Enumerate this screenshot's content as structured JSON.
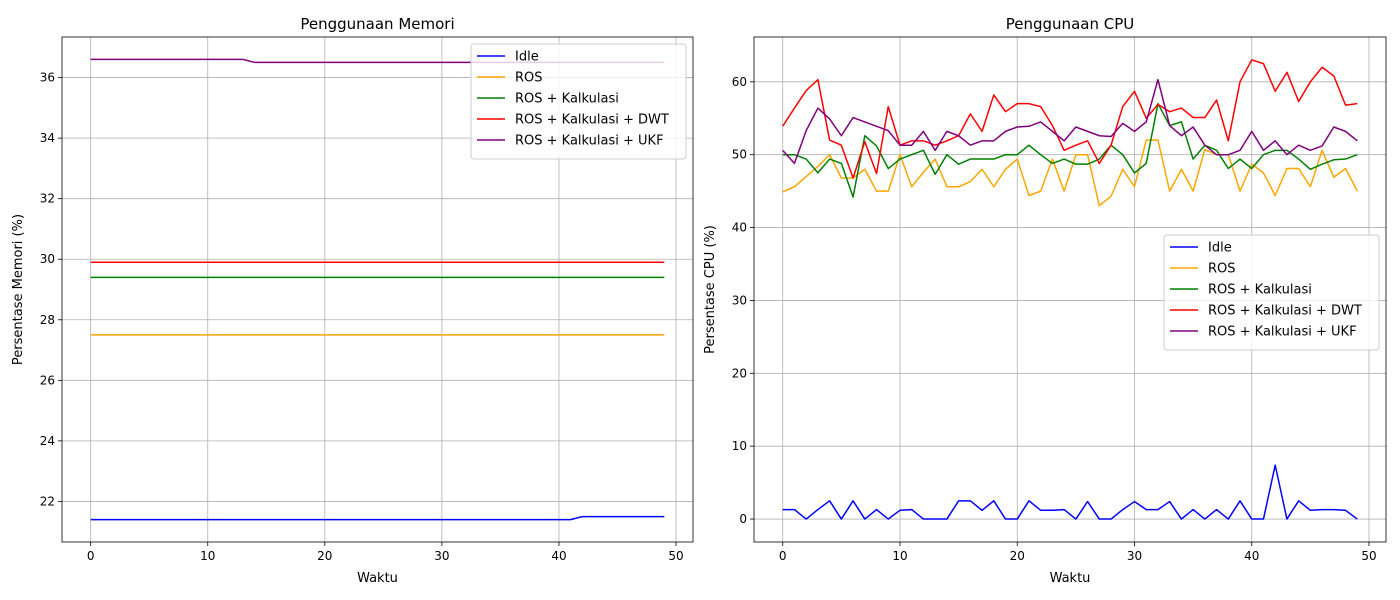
{
  "chart_data": [
    {
      "type": "line",
      "title": "Penggunaan Memori",
      "xlabel": "Waktu",
      "ylabel": "Persentase Memori (%)",
      "xlim": [
        -2.45,
        51.45
      ],
      "ylim": [
        20.66,
        37.34
      ],
      "xticks": [
        0,
        10,
        20,
        30,
        40,
        50
      ],
      "yticks": [
        22,
        24,
        26,
        28,
        30,
        32,
        34,
        36
      ],
      "grid": true,
      "legend_position": "top-right",
      "series": [
        {
          "name": "Idle",
          "color": "#0000ff",
          "values": [
            21.4,
            21.4,
            21.4,
            21.4,
            21.4,
            21.4,
            21.4,
            21.4,
            21.4,
            21.4,
            21.4,
            21.4,
            21.4,
            21.4,
            21.4,
            21.4,
            21.4,
            21.4,
            21.4,
            21.4,
            21.4,
            21.4,
            21.4,
            21.4,
            21.4,
            21.4,
            21.4,
            21.4,
            21.4,
            21.4,
            21.4,
            21.4,
            21.4,
            21.4,
            21.4,
            21.4,
            21.4,
            21.4,
            21.4,
            21.4,
            21.4,
            21.4,
            21.5,
            21.5,
            21.5,
            21.5,
            21.5,
            21.5,
            21.5,
            21.5
          ]
        },
        {
          "name": "ROS",
          "color": "#ffa500",
          "values": [
            27.5,
            27.5,
            27.5,
            27.5,
            27.5,
            27.5,
            27.5,
            27.5,
            27.5,
            27.5,
            27.5,
            27.5,
            27.5,
            27.5,
            27.5,
            27.5,
            27.5,
            27.5,
            27.5,
            27.5,
            27.5,
            27.5,
            27.5,
            27.5,
            27.5,
            27.5,
            27.5,
            27.5,
            27.5,
            27.5,
            27.5,
            27.5,
            27.5,
            27.5,
            27.5,
            27.5,
            27.5,
            27.5,
            27.5,
            27.5,
            27.5,
            27.5,
            27.5,
            27.5,
            27.5,
            27.5,
            27.5,
            27.5,
            27.5,
            27.5
          ]
        },
        {
          "name": "ROS + Kalkulasi",
          "color": "#008000",
          "values": [
            29.4,
            29.4,
            29.4,
            29.4,
            29.4,
            29.4,
            29.4,
            29.4,
            29.4,
            29.4,
            29.4,
            29.4,
            29.4,
            29.4,
            29.4,
            29.4,
            29.4,
            29.4,
            29.4,
            29.4,
            29.4,
            29.4,
            29.4,
            29.4,
            29.4,
            29.4,
            29.4,
            29.4,
            29.4,
            29.4,
            29.4,
            29.4,
            29.4,
            29.4,
            29.4,
            29.4,
            29.4,
            29.4,
            29.4,
            29.4,
            29.4,
            29.4,
            29.4,
            29.4,
            29.4,
            29.4,
            29.4,
            29.4,
            29.4,
            29.4
          ]
        },
        {
          "name": "ROS + Kalkulasi + DWT",
          "color": "#ff0000",
          "values": [
            29.9,
            29.9,
            29.9,
            29.9,
            29.9,
            29.9,
            29.9,
            29.9,
            29.9,
            29.9,
            29.9,
            29.9,
            29.9,
            29.9,
            29.9,
            29.9,
            29.9,
            29.9,
            29.9,
            29.9,
            29.9,
            29.9,
            29.9,
            29.9,
            29.9,
            29.9,
            29.9,
            29.9,
            29.9,
            29.9,
            29.9,
            29.9,
            29.9,
            29.9,
            29.9,
            29.9,
            29.9,
            29.9,
            29.9,
            29.9,
            29.9,
            29.9,
            29.9,
            29.9,
            29.9,
            29.9,
            29.9,
            29.9,
            29.9,
            29.9
          ]
        },
        {
          "name": "ROS + Kalkulasi + UKF",
          "color": "#800080",
          "values": [
            36.6,
            36.6,
            36.6,
            36.6,
            36.6,
            36.6,
            36.6,
            36.6,
            36.6,
            36.6,
            36.6,
            36.6,
            36.6,
            36.6,
            36.5,
            36.5,
            36.5,
            36.5,
            36.5,
            36.5,
            36.5,
            36.5,
            36.5,
            36.5,
            36.5,
            36.5,
            36.5,
            36.5,
            36.5,
            36.5,
            36.5,
            36.5,
            36.5,
            36.5,
            36.5,
            36.5,
            36.5,
            36.5,
            36.5,
            36.5,
            36.5,
            36.5,
            36.5,
            36.5,
            36.5,
            36.5,
            36.5,
            36.5,
            36.5,
            36.5
          ]
        }
      ]
    },
    {
      "type": "line",
      "title": "Penggunaan CPU",
      "xlabel": "Waktu",
      "ylabel": "Persentase CPU (%)",
      "xlim": [
        -2.45,
        51.45
      ],
      "ylim": [
        -3.15,
        66.15
      ],
      "xticks": [
        0,
        10,
        20,
        30,
        40,
        50
      ],
      "yticks": [
        0,
        10,
        20,
        30,
        40,
        50,
        60
      ],
      "grid": true,
      "legend_position": "center-right",
      "series": [
        {
          "name": "Idle",
          "color": "#0000ff",
          "values": [
            1.3,
            1.3,
            0,
            1.3,
            2.5,
            0,
            2.5,
            0,
            1.3,
            0,
            1.2,
            1.3,
            0,
            0,
            0,
            2.5,
            2.5,
            1.2,
            2.5,
            0,
            0,
            2.5,
            1.2,
            1.2,
            1.3,
            0,
            2.4,
            0,
            0,
            1.3,
            2.4,
            1.3,
            1.3,
            2.4,
            0,
            1.3,
            0,
            1.3,
            0,
            2.5,
            0,
            0,
            7.4,
            0,
            2.5,
            1.2,
            1.3,
            1.3,
            1.2,
            0
          ]
        },
        {
          "name": "ROS",
          "color": "#ffa500",
          "values": [
            44.9,
            45.6,
            47,
            48.4,
            50,
            46.8,
            46.8,
            48,
            45,
            45,
            50,
            45.6,
            47.6,
            49.4,
            45.6,
            45.6,
            46.3,
            48,
            45.6,
            48,
            49.4,
            44.4,
            45,
            49.4,
            45,
            50,
            50,
            43,
            44.3,
            48,
            45.6,
            52,
            52,
            45,
            48,
            45,
            50.7,
            50,
            50,
            45,
            48.7,
            47.5,
            44.4,
            48.1,
            48.1,
            45.6,
            50.6,
            46.9,
            48.1,
            45
          ]
        },
        {
          "name": "ROS + Kalkulasi",
          "color": "#008000",
          "values": [
            50,
            50,
            49.4,
            47.5,
            49.4,
            48.8,
            44.2,
            52.6,
            51.2,
            48.1,
            49.4,
            50,
            50.6,
            47.3,
            50,
            48.7,
            49.4,
            49.4,
            49.4,
            50,
            50,
            51.3,
            50,
            48.8,
            49.4,
            48.7,
            48.7,
            49.4,
            51.3,
            50,
            47.5,
            48.8,
            57,
            54,
            54.5,
            49.4,
            51.3,
            50.6,
            48.1,
            49.4,
            48.1,
            50,
            50.6,
            50.6,
            49.4,
            48,
            48.7,
            49.3,
            49.4,
            50
          ]
        },
        {
          "name": "ROS + Kalkulasi + DWT",
          "color": "#ff0000",
          "values": [
            53.9,
            56.4,
            58.8,
            60.3,
            52,
            51.3,
            46.8,
            51.8,
            47.4,
            56.6,
            51.3,
            51.9,
            51.9,
            51.3,
            51.9,
            52.6,
            55.6,
            53.2,
            58.2,
            55.9,
            57,
            57,
            56.6,
            54,
            50.6,
            51.3,
            51.9,
            48.8,
            51.3,
            56.6,
            58.7,
            55,
            56.9,
            55.9,
            56.4,
            55.1,
            55.1,
            57.5,
            51.9,
            60,
            63,
            62.5,
            58.7,
            61.3,
            57.3,
            60,
            62,
            60.8,
            56.8,
            57
          ]
        },
        {
          "name": "ROS + Kalkulasi + UKF",
          "color": "#800080",
          "values": [
            50.6,
            48.8,
            53.3,
            56.4,
            54.9,
            52.6,
            55.1,
            54.5,
            53.9,
            53.3,
            51.3,
            51.3,
            53.2,
            50.6,
            53.2,
            52.6,
            51.3,
            51.9,
            51.9,
            53.2,
            53.8,
            53.9,
            54.5,
            53.2,
            51.9,
            53.8,
            53.2,
            52.6,
            52.5,
            54.3,
            53.2,
            54.5,
            60.3,
            54,
            52.6,
            53.8,
            51.3,
            50,
            50,
            50.6,
            53.2,
            50.6,
            51.9,
            50,
            51.3,
            50.6,
            51.2,
            53.8,
            53.2,
            51.9
          ]
        }
      ]
    }
  ]
}
